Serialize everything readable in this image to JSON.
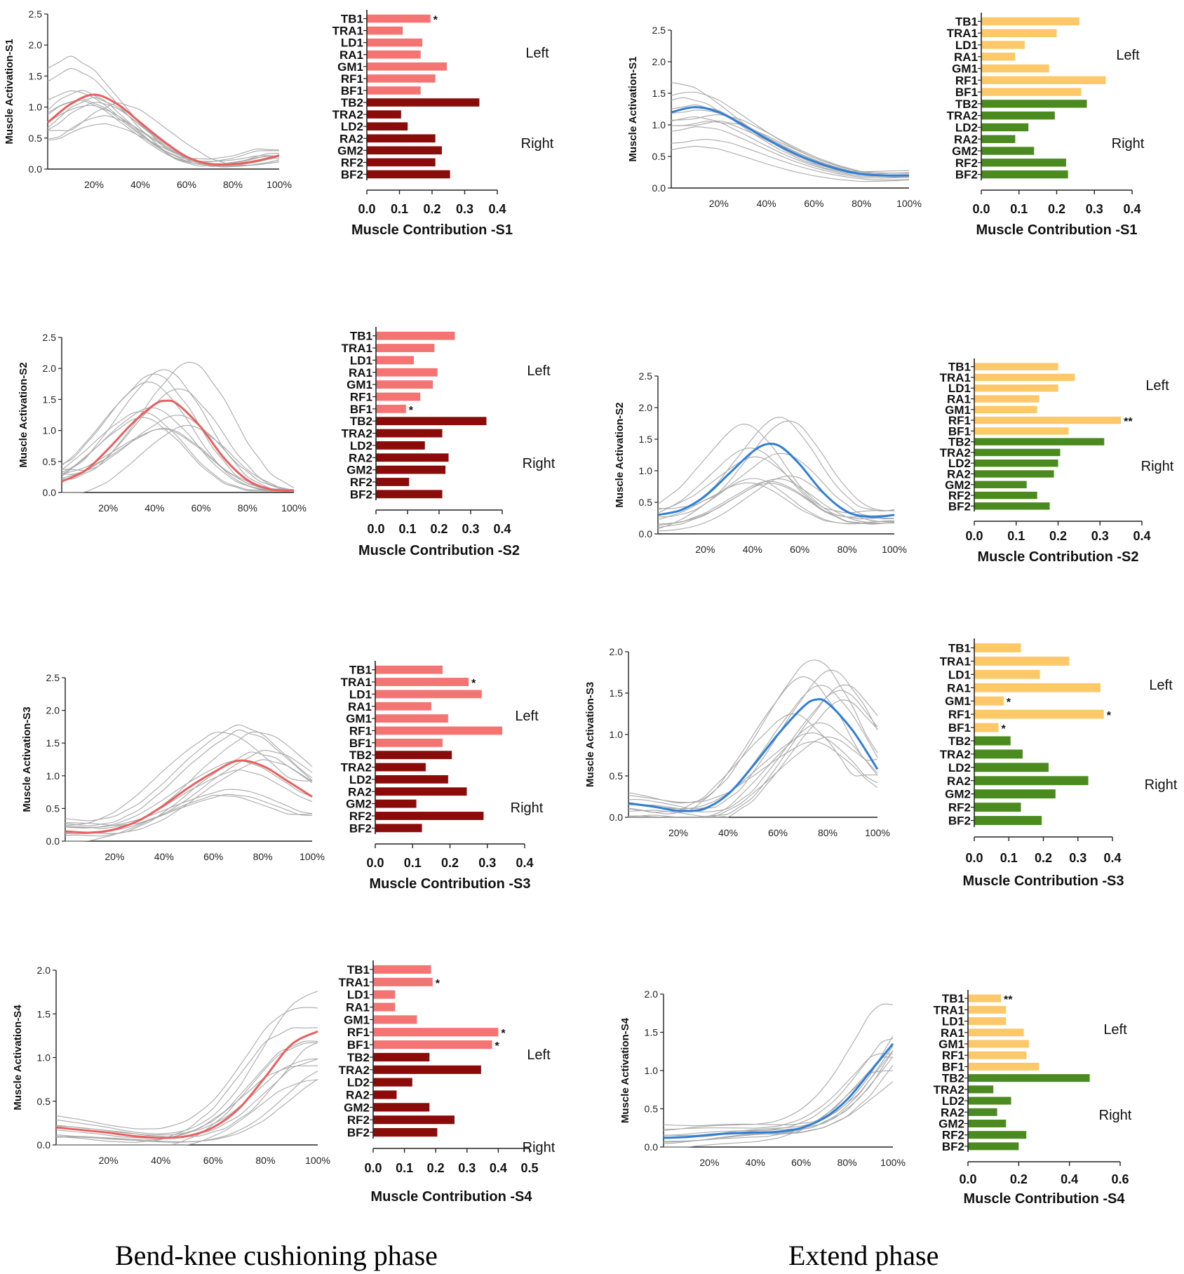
{
  "captions": {
    "left": "Bend-knee cushioning phase",
    "right": "Extend phase"
  },
  "colors": {
    "bend_mean": "#e8605f",
    "extend_mean": "#2f7fd6",
    "bend_left_bar": "#f47474",
    "bend_right_bar": "#8b0a0a",
    "extend_left_bar": "#fcc86a",
    "extend_right_bar": "#4a8a1e",
    "trace": "#a9a9a9"
  },
  "side_labels": {
    "left": "Left",
    "right": "Right"
  },
  "muscles": [
    "TB1",
    "TRA1",
    "LD1",
    "RA1",
    "GM1",
    "RF1",
    "BF1",
    "TB2",
    "TRA2",
    "LD2",
    "RA2",
    "GM2",
    "RF2",
    "BF2"
  ],
  "chart_data": [
    {
      "id": "bend-s1-activation",
      "type": "line",
      "phase": "bend",
      "ylabel": "Muscle Activation-S1",
      "x_ticks": [
        "20%",
        "40%",
        "60%",
        "80%",
        "100%"
      ],
      "y_ticks": [
        "0.0",
        "0.5",
        "1.0",
        "1.5",
        "2.0",
        "2.5"
      ],
      "ylim": [
        0,
        2.5
      ],
      "mean_curve": [
        [
          0,
          0.75
        ],
        [
          10,
          1.05
        ],
        [
          20,
          1.2
        ],
        [
          30,
          1.05
        ],
        [
          40,
          0.75
        ],
        [
          50,
          0.45
        ],
        [
          60,
          0.2
        ],
        [
          70,
          0.08
        ],
        [
          80,
          0.08
        ],
        [
          90,
          0.13
        ],
        [
          100,
          0.22
        ]
      ]
    },
    {
      "id": "bend-s1-contribution",
      "type": "bar",
      "phase": "bend",
      "xlabel": "Muscle Contribution -S1",
      "x_ticks": [
        "0.0",
        "0.1",
        "0.2",
        "0.3",
        "0.4"
      ],
      "xlim": [
        0,
        0.4
      ],
      "values": [
        0.195,
        0.11,
        0.17,
        0.165,
        0.245,
        0.21,
        0.165,
        0.345,
        0.105,
        0.125,
        0.21,
        0.23,
        0.21,
        0.255
      ],
      "stars": [
        {
          "muscle": "TB1",
          "mark": "*"
        }
      ]
    },
    {
      "id": "extend-s1-activation",
      "type": "line",
      "phase": "extend",
      "ylabel": "Muscle Activation-S1",
      "x_ticks": [
        "20%",
        "40%",
        "60%",
        "80%",
        "100%"
      ],
      "y_ticks": [
        "0.0",
        "0.5",
        "1.0",
        "1.5",
        "2.0",
        "2.5"
      ],
      "ylim": [
        0,
        2.5
      ],
      "mean_curve": [
        [
          0,
          1.2
        ],
        [
          10,
          1.28
        ],
        [
          20,
          1.2
        ],
        [
          30,
          1.0
        ],
        [
          40,
          0.78
        ],
        [
          50,
          0.58
        ],
        [
          60,
          0.42
        ],
        [
          70,
          0.3
        ],
        [
          80,
          0.22
        ],
        [
          90,
          0.2
        ],
        [
          100,
          0.2
        ]
      ]
    },
    {
      "id": "extend-s1-contribution",
      "type": "bar",
      "phase": "extend",
      "xlabel": "Muscle Contribution -S1",
      "x_ticks": [
        "0.0",
        "0.1",
        "0.2",
        "0.3",
        "0.4"
      ],
      "xlim": [
        0,
        0.4
      ],
      "values": [
        0.26,
        0.2,
        0.115,
        0.09,
        0.18,
        0.33,
        0.265,
        0.28,
        0.195,
        0.125,
        0.09,
        0.14,
        0.225,
        0.23
      ],
      "stars": []
    },
    {
      "id": "bend-s2-activation",
      "type": "line",
      "phase": "bend",
      "ylabel": "Muscle Activation-S2",
      "x_ticks": [
        "20%",
        "40%",
        "60%",
        "80%",
        "100%"
      ],
      "y_ticks": [
        "0.0",
        "0.5",
        "1.0",
        "1.5",
        "2.0",
        "2.5"
      ],
      "ylim": [
        0,
        2.5
      ],
      "mean_curve": [
        [
          0,
          0.18
        ],
        [
          10,
          0.35
        ],
        [
          20,
          0.7
        ],
        [
          30,
          1.1
        ],
        [
          40,
          1.42
        ],
        [
          45,
          1.48
        ],
        [
          50,
          1.42
        ],
        [
          60,
          1.05
        ],
        [
          70,
          0.55
        ],
        [
          80,
          0.2
        ],
        [
          90,
          0.05
        ],
        [
          100,
          0.03
        ]
      ]
    },
    {
      "id": "bend-s2-contribution",
      "type": "bar",
      "phase": "bend",
      "xlabel": "Muscle Contribution -S2",
      "x_ticks": [
        "0.0",
        "0.1",
        "0.2",
        "0.3",
        "0.4"
      ],
      "xlim": [
        0,
        0.4
      ],
      "values": [
        0.25,
        0.185,
        0.12,
        0.195,
        0.18,
        0.14,
        0.095,
        0.35,
        0.21,
        0.155,
        0.23,
        0.22,
        0.105,
        0.21
      ],
      "stars": [
        {
          "muscle": "BF1",
          "mark": "*"
        }
      ]
    },
    {
      "id": "extend-s2-activation",
      "type": "line",
      "phase": "extend",
      "ylabel": "Muscle Activation-S2",
      "x_ticks": [
        "20%",
        "40%",
        "60%",
        "80%",
        "100%"
      ],
      "y_ticks": [
        "0.0",
        "0.5",
        "1.0",
        "1.5",
        "2.0",
        "2.5"
      ],
      "ylim": [
        0,
        2.5
      ],
      "mean_curve": [
        [
          0,
          0.3
        ],
        [
          10,
          0.38
        ],
        [
          20,
          0.6
        ],
        [
          30,
          0.95
        ],
        [
          40,
          1.3
        ],
        [
          46,
          1.42
        ],
        [
          52,
          1.38
        ],
        [
          60,
          1.1
        ],
        [
          70,
          0.65
        ],
        [
          80,
          0.35
        ],
        [
          90,
          0.27
        ],
        [
          100,
          0.3
        ]
      ]
    },
    {
      "id": "extend-s2-contribution",
      "type": "bar",
      "phase": "extend",
      "xlabel": "Muscle Contribution -S2",
      "x_ticks": [
        "0.0",
        "0.1",
        "0.2",
        "0.3",
        "0.4"
      ],
      "xlim": [
        0,
        0.4
      ],
      "values": [
        0.2,
        0.24,
        0.2,
        0.155,
        0.15,
        0.35,
        0.225,
        0.31,
        0.205,
        0.2,
        0.19,
        0.125,
        0.15,
        0.18
      ],
      "stars": [
        {
          "muscle": "RF1",
          "mark": "**"
        }
      ]
    },
    {
      "id": "bend-s3-activation",
      "type": "line",
      "phase": "bend",
      "ylabel": "Muscle Activation-S3",
      "x_ticks": [
        "20%",
        "40%",
        "60%",
        "80%",
        "100%"
      ],
      "y_ticks": [
        "0.0",
        "0.5",
        "1.0",
        "1.5",
        "2.0",
        "2.5"
      ],
      "ylim": [
        0,
        2.5
      ],
      "mean_curve": [
        [
          0,
          0.15
        ],
        [
          10,
          0.13
        ],
        [
          20,
          0.18
        ],
        [
          30,
          0.32
        ],
        [
          40,
          0.55
        ],
        [
          50,
          0.82
        ],
        [
          60,
          1.05
        ],
        [
          70,
          1.23
        ],
        [
          80,
          1.15
        ],
        [
          90,
          0.92
        ],
        [
          100,
          0.68
        ]
      ]
    },
    {
      "id": "bend-s3-contribution",
      "type": "bar",
      "phase": "bend",
      "xlabel": "Muscle Contribution -S3",
      "x_ticks": [
        "0.0",
        "0.1",
        "0.2",
        "0.3",
        "0.4"
      ],
      "xlim": [
        0,
        0.4
      ],
      "values": [
        0.18,
        0.25,
        0.285,
        0.15,
        0.195,
        0.34,
        0.18,
        0.205,
        0.135,
        0.195,
        0.245,
        0.11,
        0.29,
        0.125
      ],
      "stars": [
        {
          "muscle": "TRA1",
          "mark": "*"
        }
      ]
    },
    {
      "id": "extend-s3-activation",
      "type": "line",
      "phase": "extend",
      "ylabel": "Muscle Activation-S3",
      "x_ticks": [
        "20%",
        "40%",
        "60%",
        "80%",
        "100%"
      ],
      "y_ticks": [
        "0.0",
        "0.5",
        "1.0",
        "1.5",
        "2.0"
      ],
      "ylim": [
        0,
        2.0
      ],
      "mean_curve": [
        [
          0,
          0.17
        ],
        [
          10,
          0.13
        ],
        [
          20,
          0.08
        ],
        [
          30,
          0.1
        ],
        [
          40,
          0.28
        ],
        [
          50,
          0.62
        ],
        [
          60,
          1.0
        ],
        [
          70,
          1.33
        ],
        [
          75,
          1.42
        ],
        [
          80,
          1.38
        ],
        [
          90,
          1.05
        ],
        [
          100,
          0.58
        ]
      ]
    },
    {
      "id": "extend-s3-contribution",
      "type": "bar",
      "phase": "extend",
      "xlabel": "Muscle Contribution -S3",
      "x_ticks": [
        "0.0",
        "0.1",
        "0.2",
        "0.3",
        "0.4"
      ],
      "xlim": [
        0,
        0.4
      ],
      "values": [
        0.135,
        0.275,
        0.19,
        0.365,
        0.085,
        0.375,
        0.07,
        0.105,
        0.14,
        0.215,
        0.33,
        0.235,
        0.135,
        0.195
      ],
      "stars": [
        {
          "muscle": "GM1",
          "mark": "*"
        },
        {
          "muscle": "RF1",
          "mark": "*"
        },
        {
          "muscle": "BF1",
          "mark": "*"
        }
      ]
    },
    {
      "id": "bend-s4-activation",
      "type": "line",
      "phase": "bend",
      "ylabel": "Muscle Activation-S4",
      "x_ticks": [
        "20%",
        "40%",
        "60%",
        "80%",
        "100%"
      ],
      "y_ticks": [
        "0.0",
        "0.5",
        "1.0",
        "1.5",
        "2.0"
      ],
      "ylim": [
        0,
        2.0
      ],
      "mean_curve": [
        [
          0,
          0.2
        ],
        [
          10,
          0.17
        ],
        [
          20,
          0.14
        ],
        [
          30,
          0.1
        ],
        [
          40,
          0.08
        ],
        [
          50,
          0.1
        ],
        [
          60,
          0.2
        ],
        [
          70,
          0.42
        ],
        [
          80,
          0.78
        ],
        [
          90,
          1.15
        ],
        [
          100,
          1.3
        ]
      ]
    },
    {
      "id": "bend-s4-contribution",
      "type": "bar",
      "phase": "bend",
      "xlabel": "Muscle Contribution -S4",
      "x_ticks": [
        "0.0",
        "0.1",
        "0.2",
        "0.3",
        "0.4",
        "0.5"
      ],
      "xlim": [
        0,
        0.5
      ],
      "values": [
        0.185,
        0.19,
        0.07,
        0.07,
        0.14,
        0.4,
        0.38,
        0.18,
        0.345,
        0.125,
        0.075,
        0.18,
        0.26,
        0.205
      ],
      "stars": [
        {
          "muscle": "TRA1",
          "mark": "*"
        },
        {
          "muscle": "RF1",
          "mark": "*"
        },
        {
          "muscle": "BF1",
          "mark": "*"
        }
      ]
    },
    {
      "id": "extend-s4-activation",
      "type": "line",
      "phase": "extend",
      "ylabel": "Muscle Activation-S4",
      "x_ticks": [
        "20%",
        "40%",
        "60%",
        "80%",
        "100%"
      ],
      "y_ticks": [
        "0.0",
        "0.5",
        "1.0",
        "1.5",
        "2.0"
      ],
      "ylim": [
        0,
        2.0
      ],
      "mean_curve": [
        [
          0,
          0.12
        ],
        [
          10,
          0.13
        ],
        [
          20,
          0.16
        ],
        [
          30,
          0.18
        ],
        [
          40,
          0.19
        ],
        [
          50,
          0.2
        ],
        [
          60,
          0.25
        ],
        [
          70,
          0.38
        ],
        [
          80,
          0.62
        ],
        [
          90,
          0.98
        ],
        [
          100,
          1.35
        ]
      ]
    },
    {
      "id": "extend-s4-contribution",
      "type": "bar",
      "phase": "extend",
      "xlabel": "Muscle Contribution -S4",
      "x_ticks": [
        "0.0",
        "0.2",
        "0.4",
        "0.6"
      ],
      "xlim": [
        0,
        0.6
      ],
      "values": [
        0.13,
        0.15,
        0.15,
        0.22,
        0.24,
        0.23,
        0.28,
        0.48,
        0.1,
        0.17,
        0.115,
        0.15,
        0.23,
        0.2
      ],
      "stars": [
        {
          "muscle": "TB1",
          "mark": "**"
        }
      ]
    }
  ]
}
